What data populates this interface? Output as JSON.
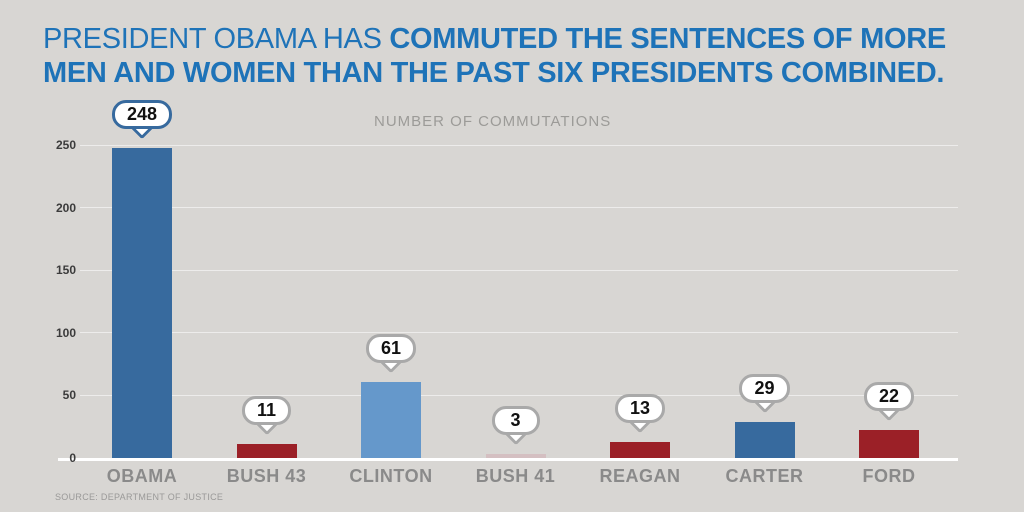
{
  "header": {
    "line1_regular": "PRESIDENT OBAMA HAS ",
    "line1_bold": "COMMUTED THE SENTENCES OF MORE",
    "line2_bold": "MEN AND WOMEN THAN THE PAST SIX PRESIDENTS COMBINED."
  },
  "chart_data": {
    "type": "bar",
    "title": "NUMBER OF COMMUTATIONS",
    "categories": [
      "OBAMA",
      "BUSH 43",
      "CLINTON",
      "BUSH 41",
      "REAGAN",
      "CARTER",
      "FORD"
    ],
    "values": [
      248,
      11,
      61,
      3,
      13,
      29,
      22
    ],
    "bar_colors": [
      "#376A9E",
      "#9B2027",
      "#6598CB",
      "#D4BFC1",
      "#9B2027",
      "#376A9E",
      "#9B2027"
    ],
    "callout_border_colors": [
      "#376A9E",
      "#A9A9A9",
      "#A9A9A9",
      "#A9A9A9",
      "#A9A9A9",
      "#A9A9A9",
      "#A9A9A9"
    ],
    "xlabel": "",
    "ylabel": "",
    "y_ticks": [
      0,
      50,
      100,
      150,
      200,
      250
    ],
    "ylim": [
      0,
      250
    ],
    "grid": true,
    "legend": "none",
    "source": "SOURCE: DEPARTMENT OF JUSTICE"
  },
  "colors": {
    "background": "#D8D6D3",
    "title_blue": "#1E73B8",
    "dark_blue_bar": "#376A9E",
    "light_blue_bar": "#6598CB",
    "dark_red_bar": "#9B2027",
    "pale_pink_bar": "#D4BFC1",
    "gray_label": "#8A8A8A",
    "baseline_white": "#FFFFFF"
  }
}
